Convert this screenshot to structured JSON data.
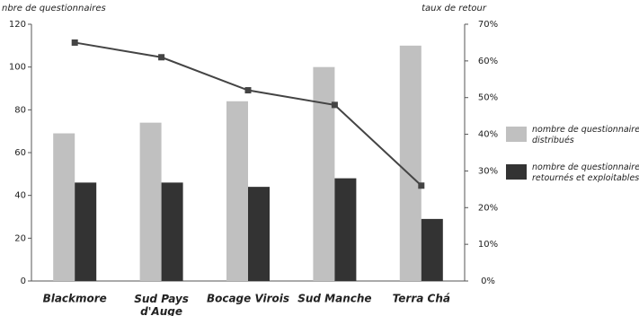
{
  "chart_data": {
    "type": "bar",
    "y_label": "nbre de questionnaires",
    "y2_label": "taux de retour",
    "categories": [
      "Blackmore",
      "Sud Pays\nd'Auge",
      "Bocage Virois",
      "Sud Manche",
      "Terra Chá"
    ],
    "series": [
      {
        "name": "nombre de questionnaires\ndistribués",
        "type": "bar",
        "color": "#c0c0c0",
        "values": [
          69,
          74,
          84,
          100,
          110
        ]
      },
      {
        "name": "nombre de questionnaires\nretournés et exploitables",
        "type": "bar",
        "color": "#333333",
        "values": [
          46,
          46,
          44,
          48,
          29
        ]
      },
      {
        "type": "line",
        "axis": "y2",
        "color": "#444444",
        "values": [
          65,
          61,
          52,
          48,
          26
        ]
      }
    ],
    "ylim": [
      0,
      120
    ],
    "yticks": [
      0,
      20,
      40,
      60,
      80,
      100,
      120
    ],
    "y2lim": [
      0,
      70
    ],
    "y2ticks": [
      {
        "value": 0,
        "label": "0%"
      },
      {
        "value": 10,
        "label": "10%"
      },
      {
        "value": 20,
        "label": "20%"
      },
      {
        "value": 30,
        "label": "30%"
      },
      {
        "value": 40,
        "label": "40%"
      },
      {
        "value": 50,
        "label": "50%"
      },
      {
        "value": 60,
        "label": "60%"
      },
      {
        "value": 70,
        "label": "70%"
      }
    ]
  }
}
